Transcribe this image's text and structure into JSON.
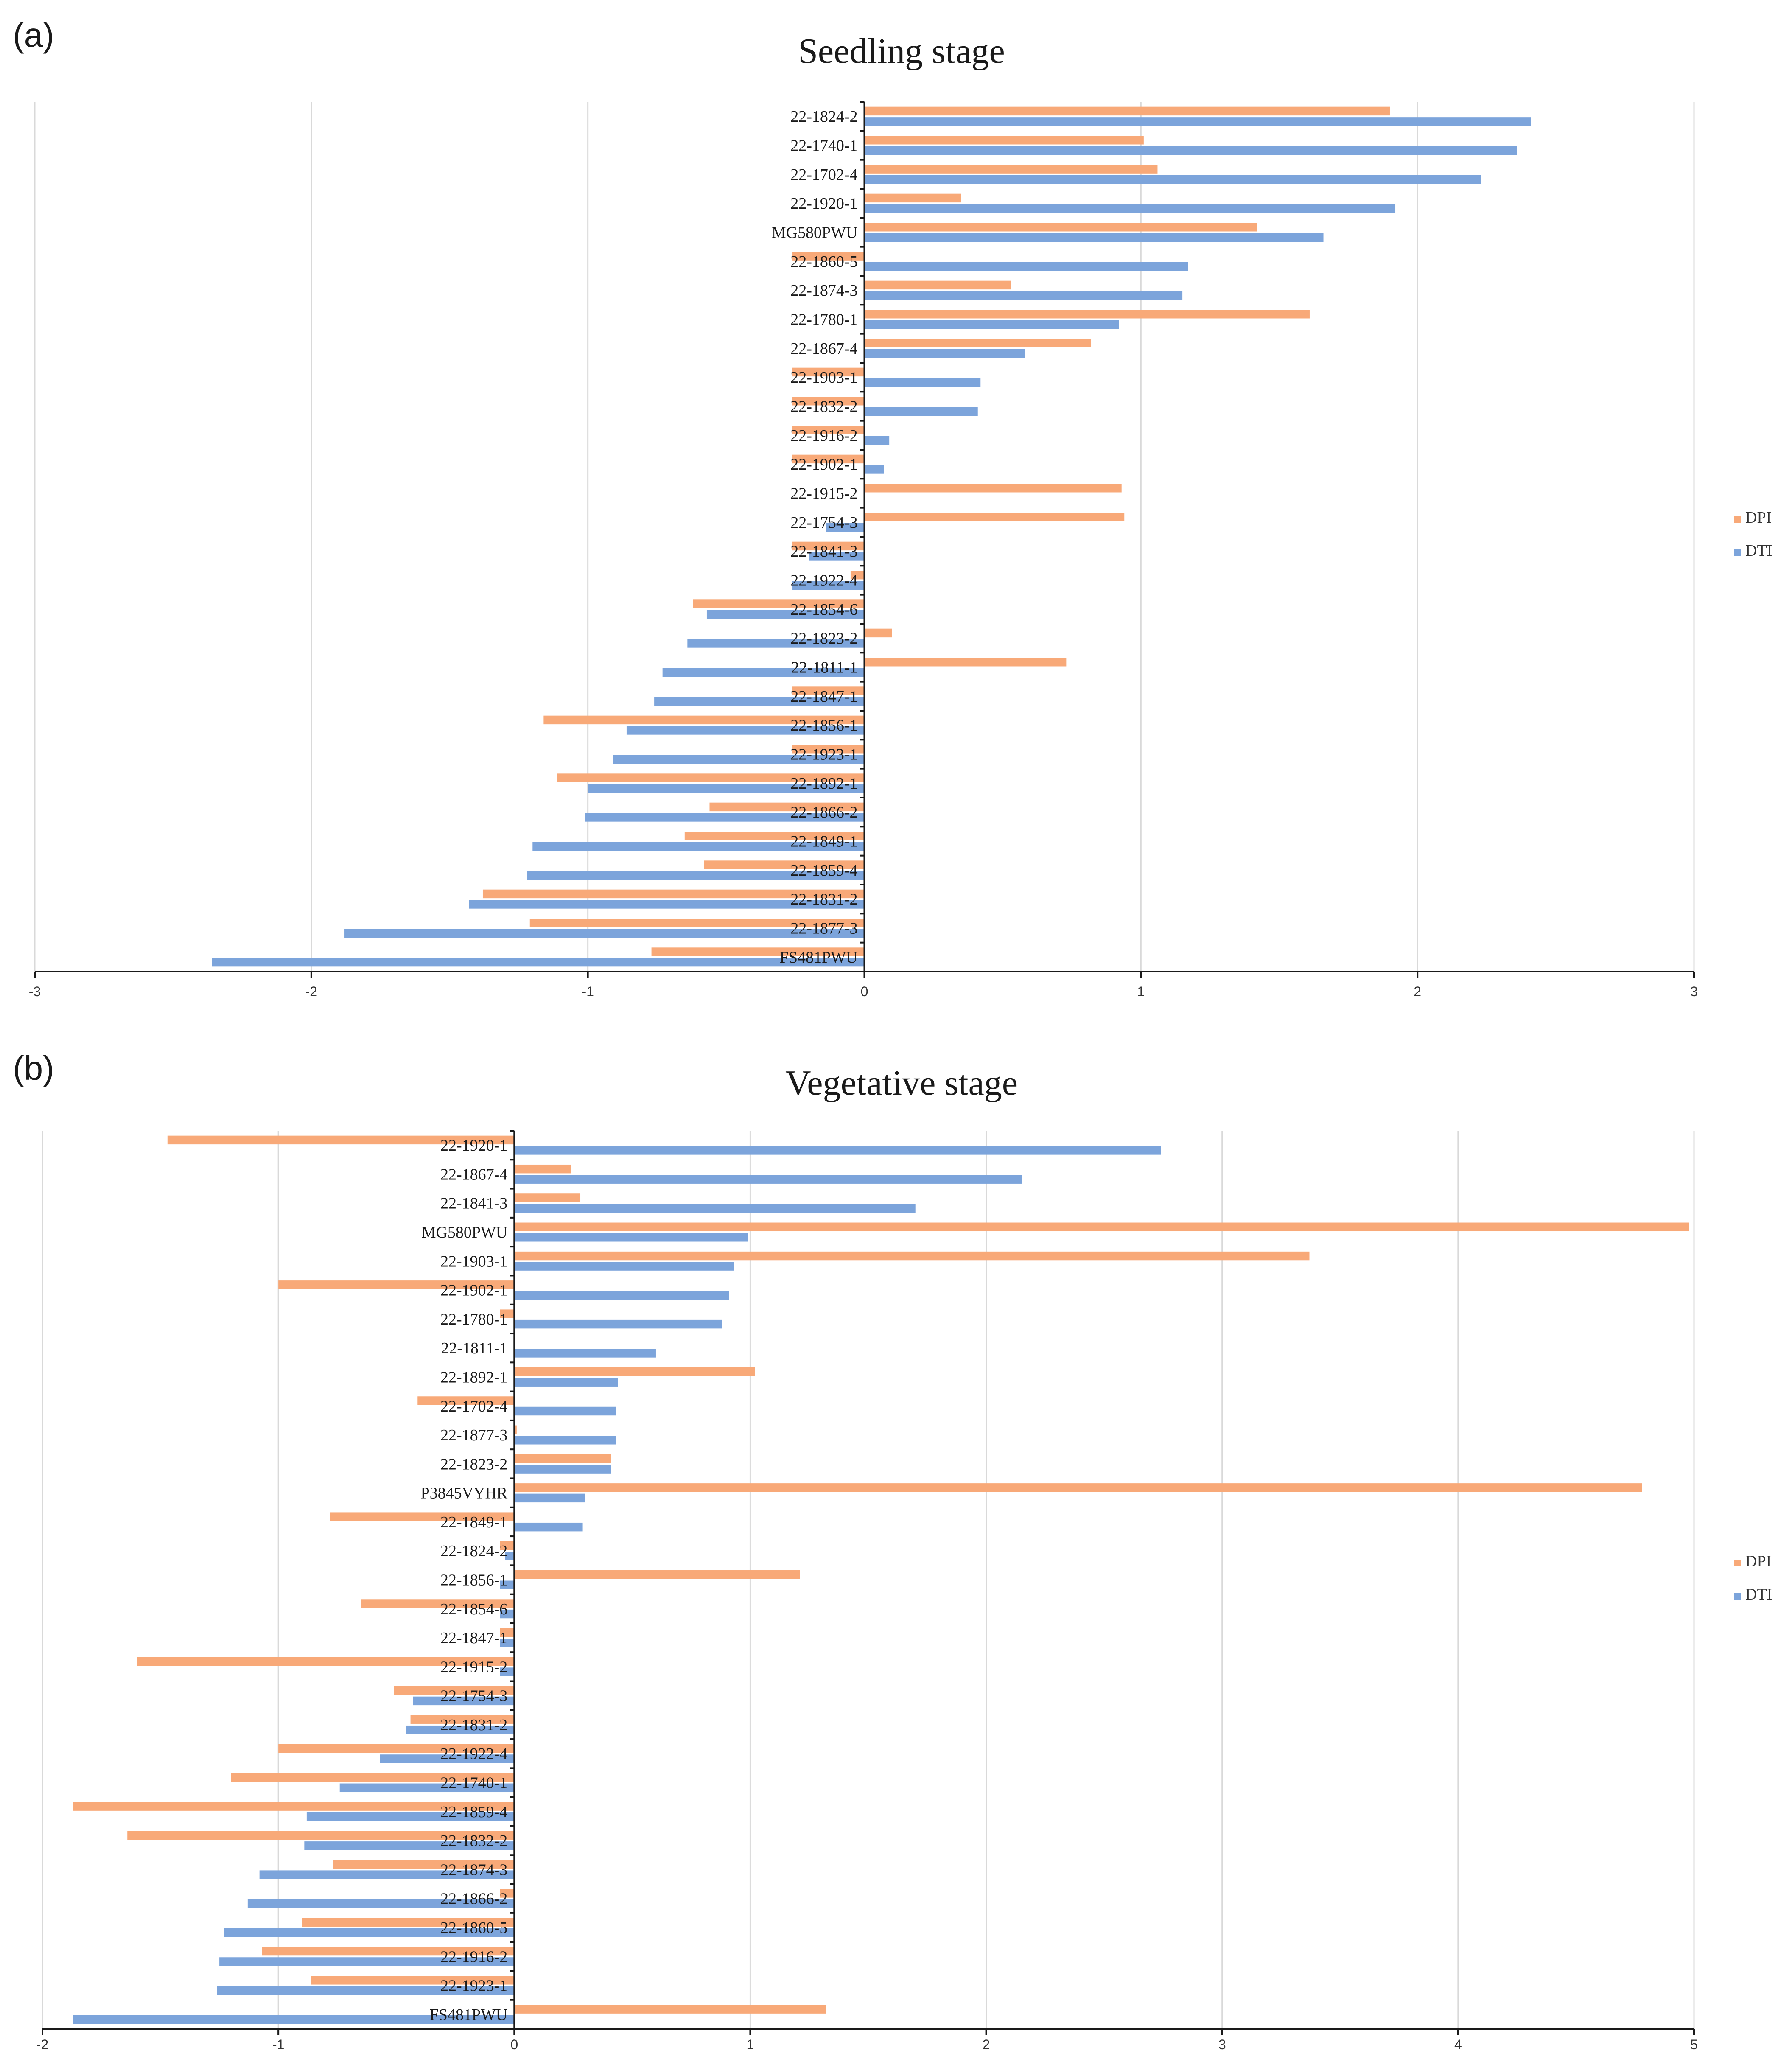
{
  "chart_data": [
    {
      "type": "bar",
      "orientation": "horizontal",
      "panel": "(a)",
      "title": "Seedling stage",
      "xlim": [
        -3,
        3
      ],
      "xticks": [
        "-3",
        "-2",
        "-1",
        "0",
        "1",
        "2",
        "3"
      ],
      "legend": [
        "DPI",
        "DTI"
      ],
      "legend_position": "right",
      "categories": [
        "22-1824-2",
        "22-1740-1",
        "22-1702-4",
        "22-1920-1",
        "MG580PWU",
        "22-1860-5",
        "22-1874-3",
        "22-1780-1",
        "22-1867-4",
        "22-1903-1",
        "22-1832-2",
        "22-1916-2",
        "22-1902-1",
        "22-1915-2",
        "22-1754-3",
        "22-1841-3",
        "22-1922-4",
        "22-1854-6",
        "22-1823-2",
        "22-1811-1",
        "22-1847-1",
        "22-1856-1",
        "22-1923-1",
        "22-1892-1",
        "22-1866-2",
        "22-1849-1",
        "22-1859-4",
        "22-1831-2",
        "22-1877-3",
        "FS481PWU"
      ],
      "series": [
        {
          "name": "DPI",
          "color": "#F8A978",
          "values": [
            1.9,
            1.01,
            1.06,
            0.35,
            1.42,
            -0.26,
            0.53,
            1.61,
            0.82,
            -0.26,
            -0.26,
            -0.26,
            -0.26,
            0.93,
            0.94,
            -0.26,
            -0.05,
            -0.62,
            0.1,
            0.73,
            -0.26,
            -1.16,
            -0.26,
            -1.11,
            -0.56,
            -0.65,
            -0.58,
            -1.38,
            -1.21,
            -0.77
          ]
        },
        {
          "name": "DTI",
          "color": "#7CA4DB",
          "values": [
            2.41,
            2.36,
            2.23,
            1.92,
            1.66,
            1.17,
            1.15,
            0.92,
            0.58,
            0.42,
            0.41,
            0.09,
            0.07,
            0.0,
            -0.14,
            -0.2,
            -0.26,
            -0.57,
            -0.64,
            -0.73,
            -0.76,
            -0.86,
            -0.91,
            -1.0,
            -1.01,
            -1.2,
            -1.22,
            -1.43,
            -1.88,
            -2.36
          ]
        }
      ]
    },
    {
      "type": "bar",
      "orientation": "horizontal",
      "panel": "(b)",
      "title": "Vegetative stage",
      "xlim": [
        -2,
        5
      ],
      "xticks": [
        "-2",
        "-1",
        "0",
        "1",
        "2",
        "3",
        "4",
        "5"
      ],
      "legend": [
        "DPI",
        "DTI"
      ],
      "legend_position": "right",
      "categories": [
        "22-1920-1",
        "22-1867-4",
        "22-1841-3",
        "MG580PWU",
        "22-1903-1",
        "22-1902-1",
        "22-1780-1",
        "22-1811-1",
        "22-1892-1",
        "22-1702-4",
        "22-1877-3",
        "22-1823-2",
        "P3845VYHR",
        "22-1849-1",
        "22-1824-2",
        "22-1856-1",
        "22-1854-6",
        "22-1847-1",
        "22-1915-2",
        "22-1754-3",
        "22-1831-2",
        "22-1922-4",
        "22-1740-1",
        "22-1859-4",
        "22-1832-2",
        "22-1874-3",
        "22-1866-2",
        "22-1860-5",
        "22-1916-2",
        "22-1923-1",
        "FS481PWU"
      ],
      "series": [
        {
          "name": "DPI",
          "color": "#F8A978",
          "values": [
            -1.47,
            0.24,
            0.28,
            4.98,
            3.37,
            -1.0,
            -0.06,
            0.0,
            1.02,
            -0.41,
            0.01,
            0.41,
            4.78,
            -0.78,
            -0.06,
            1.21,
            -0.65,
            -0.06,
            -1.6,
            -0.51,
            -0.44,
            -1.0,
            -1.2,
            -1.87,
            -1.64,
            -0.77,
            -0.06,
            -0.9,
            -1.07,
            -0.86,
            1.32
          ]
        },
        {
          "name": "DTI",
          "color": "#7CA4DB",
          "values": [
            2.74,
            2.15,
            1.7,
            0.99,
            0.93,
            0.91,
            0.88,
            0.6,
            0.44,
            0.43,
            0.43,
            0.41,
            0.3,
            0.29,
            -0.04,
            -0.06,
            -0.06,
            -0.06,
            -0.06,
            -0.43,
            -0.46,
            -0.57,
            -0.74,
            -0.88,
            -0.89,
            -1.08,
            -1.13,
            -1.23,
            -1.25,
            -1.26,
            -1.87
          ]
        }
      ]
    }
  ]
}
